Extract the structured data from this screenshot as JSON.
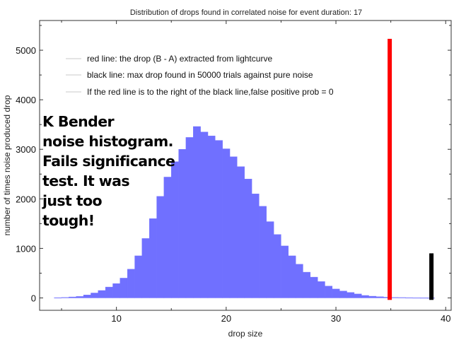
{
  "chart_data": {
    "type": "bar",
    "title": "Distribution of drops found in correlated noise for event duration: 17",
    "xlabel": "drop size",
    "ylabel": "number of times noise produced drop",
    "xlim": [
      3,
      40.5
    ],
    "ylim": [
      -250,
      5600
    ],
    "x_ticks": [
      10,
      20,
      30,
      40
    ],
    "y_ticks": [
      0,
      1000,
      2000,
      3000,
      4000,
      5000
    ],
    "grid": false,
    "legend_position": "top-left",
    "legend": [
      "red line: the drop (B - A) extracted from lightcurve",
      "black line: max drop found in 50000 trials against pure noise",
      "If the red line is to the right of the black line,false positive prob = 0"
    ],
    "histogram": {
      "bin_width": 0.6667,
      "bin_starts": [
        4.33,
        5.0,
        5.67,
        6.33,
        7.0,
        7.67,
        8.33,
        9.0,
        9.67,
        10.33,
        11.0,
        11.67,
        12.33,
        13.0,
        13.67,
        14.33,
        15.0,
        15.67,
        16.33,
        17.0,
        17.67,
        18.33,
        19.0,
        19.67,
        20.33,
        21.0,
        21.67,
        22.33,
        23.0,
        23.67,
        24.33,
        25.0,
        25.67,
        26.33,
        27.0,
        27.67,
        28.33,
        29.0,
        29.67,
        30.33,
        31.0,
        31.67,
        32.33,
        33.0,
        33.67,
        34.33,
        35.0,
        35.67,
        36.33,
        37.0,
        37.67,
        38.33
      ],
      "counts": [
        5,
        10,
        20,
        30,
        60,
        100,
        150,
        220,
        290,
        400,
        580,
        850,
        1200,
        1600,
        2050,
        2440,
        2750,
        3000,
        3240,
        3460,
        3350,
        3270,
        3180,
        3010,
        2850,
        2650,
        2400,
        2100,
        1850,
        1540,
        1280,
        1050,
        850,
        680,
        520,
        420,
        330,
        240,
        180,
        140,
        110,
        80,
        50,
        35,
        25,
        15,
        10,
        8,
        5,
        3,
        2,
        1
      ],
      "color": "#7070ff"
    },
    "markers": [
      {
        "name": "red line",
        "x": 34.9,
        "y_top": 5230,
        "color": "#ff0000"
      },
      {
        "name": "black line",
        "x": 38.7,
        "y_top": 900,
        "color": "#000000"
      }
    ]
  },
  "annotation": {
    "lines": [
      "K Bender",
      "noise histogram.",
      "Fails significance",
      "test. It was",
      "just too",
      "tough!"
    ]
  }
}
